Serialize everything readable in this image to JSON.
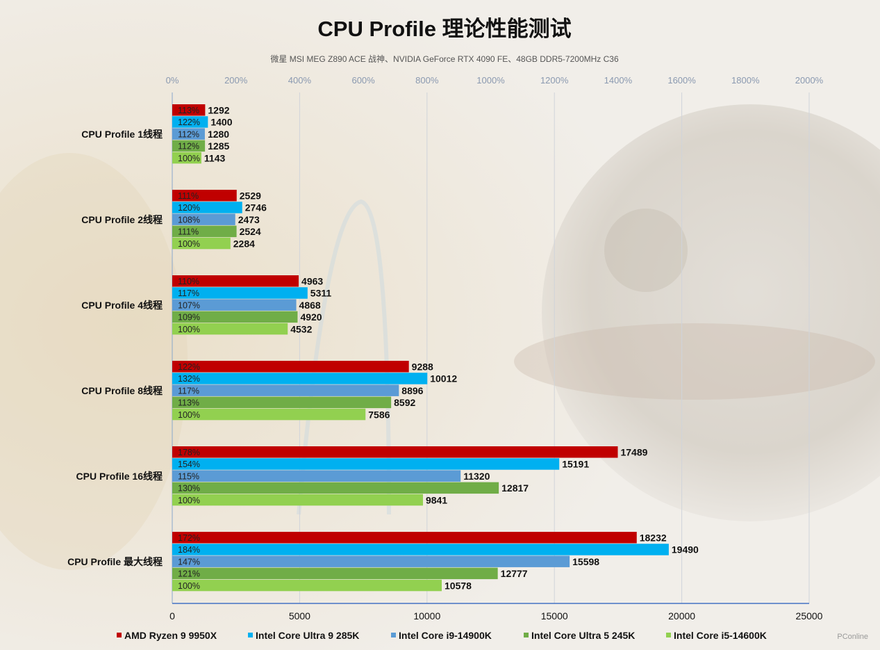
{
  "chart_data": {
    "type": "bar",
    "orientation": "horizontal",
    "title": "CPU Profile 理论性能测试",
    "subtitle": "微星 MSI MEG Z890 ACE 战神、NVIDIA GeForce RTX 4090 FE、48GB DDR5-7200MHz C36",
    "categories": [
      "CPU Profile 1线程",
      "CPU Profile 2线程",
      "CPU Profile 4线程",
      "CPU Profile 8线程",
      "CPU Profile 16线程",
      "CPU Profile 最大线程"
    ],
    "series": [
      {
        "name": "AMD Ryzen 9 9950X",
        "color": "#c00000",
        "values": [
          1292,
          2529,
          4963,
          9288,
          17489,
          18232
        ],
        "percent": [
          "113%",
          "111%",
          "110%",
          "122%",
          "178%",
          "172%"
        ]
      },
      {
        "name": "Intel Core Ultra 9 285K",
        "color": "#00b0f0",
        "values": [
          1400,
          2746,
          5311,
          10012,
          15191,
          19490
        ],
        "percent": [
          "122%",
          "120%",
          "117%",
          "132%",
          "154%",
          "184%"
        ]
      },
      {
        "name": "Intel Core i9-14900K",
        "color": "#5b9bd5",
        "values": [
          1280,
          2473,
          4868,
          8896,
          11320,
          15598
        ],
        "percent": [
          "112%",
          "108%",
          "107%",
          "117%",
          "115%",
          "147%"
        ]
      },
      {
        "name": "Intel Core Ultra 5 245K",
        "color": "#70ad47",
        "values": [
          1285,
          2524,
          4920,
          8592,
          12817,
          12777
        ],
        "percent": [
          "112%",
          "111%",
          "109%",
          "113%",
          "130%",
          "121%"
        ]
      },
      {
        "name": "Intel Core i5-14600K",
        "color": "#92d050",
        "values": [
          1143,
          2284,
          4532,
          7586,
          9841,
          10578
        ],
        "percent": [
          "100%",
          "100%",
          "100%",
          "100%",
          "100%",
          "100%"
        ]
      }
    ],
    "x_axis_bottom": {
      "range": [
        0,
        25000
      ],
      "ticks": [
        0,
        5000,
        10000,
        15000,
        20000,
        25000
      ]
    },
    "x_axis_top": {
      "range": [
        0,
        2000
      ],
      "ticks": [
        "0%",
        "200%",
        "400%",
        "600%",
        "800%",
        "1000%",
        "1200%",
        "1400%",
        "1600%",
        "1800%",
        "2000%"
      ]
    },
    "grid": true,
    "legend": "bottom"
  },
  "watermark": "PConline"
}
